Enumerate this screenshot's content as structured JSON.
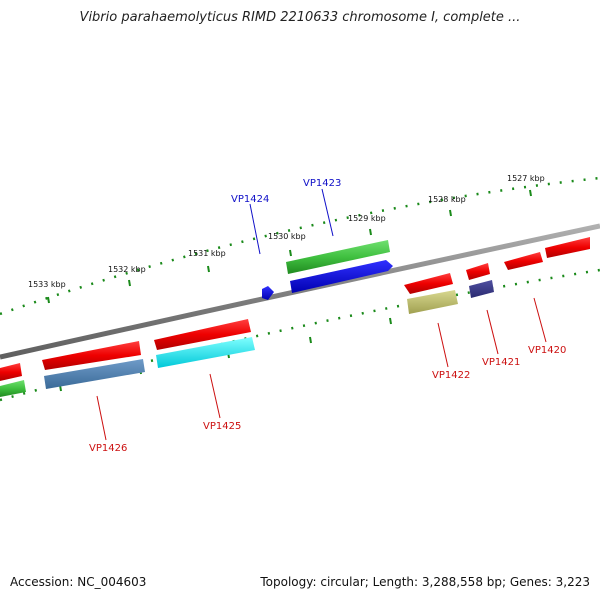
{
  "title": "Vibrio parahaemolyticus RIMD 2210633 chromosome I, complete ...",
  "footer": {
    "accession": "Accession: NC_004603",
    "topology": "Topology: circular; Length: 3,288,558 bp; Genes: 3,223"
  },
  "ticks": [
    "1527 kbp",
    "1528 kbp",
    "1529 kbp",
    "1530 kbp",
    "1531 kbp",
    "1532 kbp",
    "1533 kbp"
  ],
  "genes": [
    {
      "id": "VP1420",
      "strand": "reverse"
    },
    {
      "id": "VP1421",
      "strand": "reverse"
    },
    {
      "id": "VP1422",
      "strand": "reverse"
    },
    {
      "id": "VP1423",
      "strand": "forward"
    },
    {
      "id": "VP1424",
      "strand": "forward"
    },
    {
      "id": "VP1425",
      "strand": "reverse"
    },
    {
      "id": "VP1426",
      "strand": "reverse"
    }
  ],
  "colors": {
    "forward_label": "#1010c8",
    "reverse_label": "#cc1010",
    "backbone": "#808080",
    "ticks": "#1a8a1a"
  }
}
